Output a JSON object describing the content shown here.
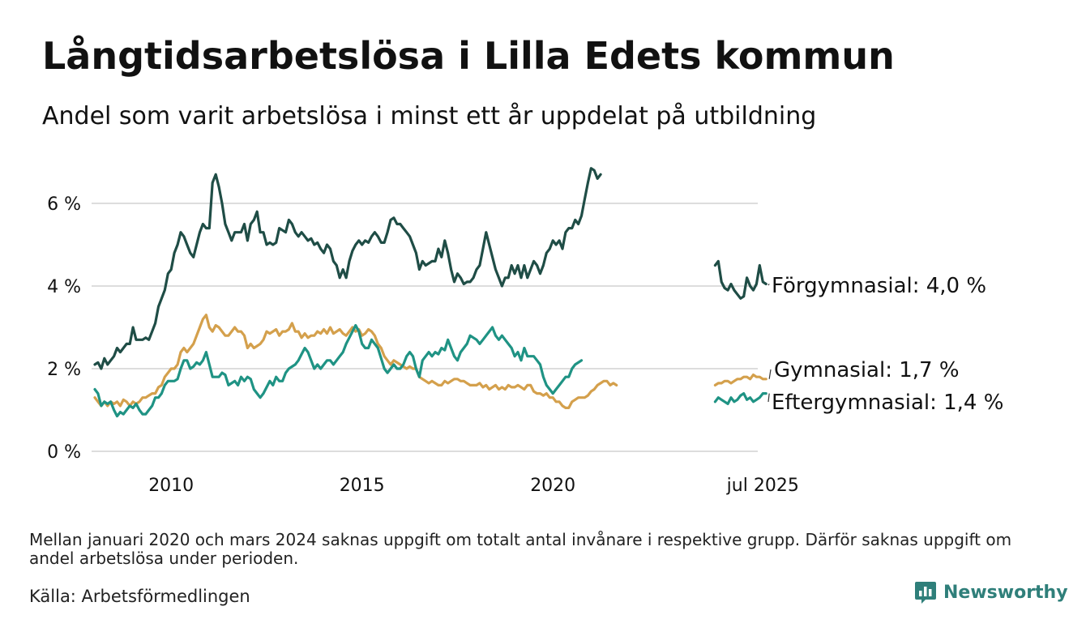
{
  "title": "Långtidsarbetslösa i Lilla Edets kommun",
  "subtitle": "Andel som varit arbetslösa i minst ett år uppdelat på utbildning",
  "footnote": "Mellan januari 2020 och mars 2024 saknas uppgift om totalt antal invånare i respektive grupp. Därför saknas uppgift om andel arbetslösa under perioden.",
  "source": "Källa: Arbetsförmedlingen",
  "brand": {
    "name": "Newsworthy",
    "icon": "newsworthy-logo-icon"
  },
  "colors": {
    "Förgymnasial": "#1f4d46",
    "Gymnasial": "#d4a04c",
    "Eftergymnasial": "#1f9384",
    "grid": "#dddddd",
    "brand": "#2f7f7a"
  },
  "chart_data": {
    "type": "line",
    "grid": true,
    "ylim": [
      0,
      7
    ],
    "y_ticks": [
      {
        "value": 0,
        "label": "0 %"
      },
      {
        "value": 2,
        "label": "2 %"
      },
      {
        "value": 4,
        "label": "4 %"
      },
      {
        "value": 6,
        "label": "6 %"
      }
    ],
    "x_ticks": [
      "2010",
      "2015",
      "2020",
      "jul 2025"
    ],
    "series": [
      {
        "name": "Förgymnasial",
        "end_label": "Förgymnasial: 4,0 %",
        "segments": [
          {
            "start": "2008-01",
            "values": [
              2.1,
              2.15,
              2.0,
              2.25,
              2.1,
              2.2,
              2.3,
              2.5,
              2.4,
              2.5,
              2.6,
              2.6,
              3.0,
              2.7,
              2.7,
              2.7,
              2.75,
              2.7,
              2.9,
              3.1,
              3.5,
              3.7,
              3.9,
              4.3,
              4.4,
              4.8,
              5.0,
              5.3,
              5.2,
              5.0,
              4.8,
              4.7,
              5.0,
              5.3,
              5.5,
              5.4,
              5.4,
              6.5,
              6.7,
              6.4,
              6.0,
              5.5,
              5.3,
              5.1,
              5.3,
              5.3,
              5.3,
              5.5,
              5.1,
              5.5,
              5.6,
              5.8,
              5.3,
              5.3,
              5.0,
              5.05,
              5.0,
              5.05,
              5.4,
              5.35,
              5.3,
              5.6,
              5.5,
              5.3,
              5.2,
              5.3,
              5.2,
              5.1,
              5.15,
              5.0,
              5.05,
              4.9,
              4.8,
              5.0,
              4.9,
              4.6,
              4.5,
              4.2,
              4.4,
              4.2,
              4.6,
              4.85,
              5.0,
              5.1,
              5.0,
              5.1,
              5.05,
              5.2,
              5.3,
              5.2,
              5.05,
              5.05,
              5.3,
              5.6,
              5.65,
              5.5,
              5.5,
              5.4,
              5.3,
              5.2,
              5.0,
              4.8,
              4.4,
              4.6,
              4.5,
              4.55,
              4.6,
              4.6,
              4.9,
              4.7,
              5.1,
              4.8,
              4.4,
              4.1,
              4.3,
              4.2,
              4.05,
              4.1,
              4.1,
              4.2,
              4.4,
              4.5,
              4.9,
              5.3,
              5.0,
              4.7,
              4.4,
              4.2,
              4.0,
              4.2,
              4.2,
              4.5,
              4.3,
              4.5,
              4.2,
              4.5,
              4.2,
              4.4,
              4.6,
              4.5,
              4.3,
              4.5,
              4.8,
              4.9,
              5.1,
              5.0,
              5.1,
              4.9,
              5.3,
              5.4,
              5.4,
              5.6,
              5.5,
              5.7,
              6.1,
              6.5,
              6.85,
              6.8,
              6.6,
              6.7
            ]
          },
          {
            "start": "2024-04",
            "values": [
              4.5,
              4.6,
              4.1,
              3.95,
              3.9,
              4.05,
              3.9,
              3.8,
              3.7,
              3.75,
              4.2,
              4.0,
              3.9,
              4.05,
              4.5,
              4.1,
              4.05
            ]
          }
        ]
      },
      {
        "name": "Gymnasial",
        "end_label": "Gymnasial: 1,7 %",
        "segments": [
          {
            "start": "2008-01",
            "values": [
              1.3,
              1.2,
              1.1,
              1.2,
              1.1,
              1.2,
              1.15,
              1.2,
              1.1,
              1.25,
              1.2,
              1.1,
              1.2,
              1.15,
              1.2,
              1.3,
              1.3,
              1.35,
              1.4,
              1.4,
              1.55,
              1.6,
              1.8,
              1.9,
              2.0,
              2.0,
              2.1,
              2.4,
              2.5,
              2.4,
              2.5,
              2.6,
              2.8,
              3.0,
              3.2,
              3.3,
              3.0,
              2.9,
              3.05,
              3.0,
              2.9,
              2.8,
              2.8,
              2.9,
              3.0,
              2.9,
              2.9,
              2.8,
              2.5,
              2.6,
              2.5,
              2.55,
              2.6,
              2.7,
              2.9,
              2.85,
              2.9,
              2.95,
              2.8,
              2.9,
              2.9,
              2.95,
              3.1,
              2.9,
              2.9,
              2.75,
              2.85,
              2.75,
              2.8,
              2.8,
              2.9,
              2.85,
              2.95,
              2.85,
              3.0,
              2.85,
              2.9,
              2.95,
              2.85,
              2.8,
              2.9,
              3.0,
              2.9,
              2.95,
              2.8,
              2.85,
              2.95,
              2.9,
              2.8,
              2.6,
              2.5,
              2.3,
              2.2,
              2.1,
              2.2,
              2.15,
              2.1,
              2.05,
              2.0,
              2.05,
              2.0,
              2.0,
              1.8,
              1.75,
              1.7,
              1.65,
              1.7,
              1.65,
              1.6,
              1.6,
              1.7,
              1.65,
              1.7,
              1.75,
              1.75,
              1.7,
              1.7,
              1.65,
              1.6,
              1.6,
              1.6,
              1.65,
              1.55,
              1.6,
              1.5,
              1.55,
              1.6,
              1.5,
              1.55,
              1.5,
              1.6,
              1.55,
              1.55,
              1.6,
              1.55,
              1.5,
              1.6,
              1.6,
              1.45,
              1.4,
              1.4,
              1.35,
              1.4,
              1.3,
              1.3,
              1.2,
              1.2,
              1.1,
              1.05,
              1.05,
              1.2,
              1.25,
              1.3,
              1.3,
              1.3,
              1.35,
              1.45,
              1.5,
              1.6,
              1.65,
              1.7,
              1.7,
              1.6,
              1.65,
              1.6
            ]
          },
          {
            "start": "2024-04",
            "values": [
              1.6,
              1.65,
              1.65,
              1.7,
              1.7,
              1.65,
              1.7,
              1.75,
              1.75,
              1.8,
              1.8,
              1.75,
              1.85,
              1.8,
              1.8,
              1.75,
              1.75
            ]
          }
        ]
      },
      {
        "name": "Eftergymnasial",
        "end_label": "Eftergymnasial: 1,4 %",
        "segments": [
          {
            "start": "2008-01",
            "values": [
              1.5,
              1.4,
              1.1,
              1.2,
              1.15,
              1.2,
              1.0,
              0.85,
              0.95,
              0.9,
              1.0,
              1.1,
              1.05,
              1.15,
              1.0,
              0.9,
              0.9,
              1.0,
              1.1,
              1.3,
              1.3,
              1.4,
              1.6,
              1.7,
              1.7,
              1.7,
              1.75,
              2.0,
              2.2,
              2.2,
              2.0,
              2.05,
              2.15,
              2.1,
              2.2,
              2.4,
              2.1,
              1.8,
              1.8,
              1.8,
              1.9,
              1.85,
              1.6,
              1.65,
              1.7,
              1.6,
              1.8,
              1.7,
              1.8,
              1.75,
              1.5,
              1.4,
              1.3,
              1.4,
              1.55,
              1.7,
              1.6,
              1.8,
              1.7,
              1.7,
              1.9,
              2.0,
              2.05,
              2.1,
              2.2,
              2.35,
              2.5,
              2.4,
              2.2,
              2.0,
              2.1,
              2.0,
              2.1,
              2.2,
              2.2,
              2.1,
              2.2,
              2.3,
              2.4,
              2.6,
              2.75,
              2.9,
              3.05,
              2.9,
              2.6,
              2.5,
              2.5,
              2.7,
              2.6,
              2.5,
              2.25,
              2.0,
              1.9,
              2.0,
              2.1,
              2.0,
              2.0,
              2.1,
              2.3,
              2.4,
              2.3,
              2.0,
              1.8,
              2.2,
              2.3,
              2.4,
              2.3,
              2.4,
              2.35,
              2.5,
              2.45,
              2.7,
              2.5,
              2.3,
              2.2,
              2.4,
              2.5,
              2.6,
              2.8,
              2.75,
              2.7,
              2.6,
              2.7,
              2.8,
              2.9,
              3.0,
              2.8,
              2.7,
              2.8,
              2.7,
              2.6,
              2.5,
              2.3,
              2.4,
              2.2,
              2.5,
              2.3,
              2.3,
              2.3,
              2.2,
              2.1,
              1.8,
              1.6,
              1.5,
              1.4,
              1.5,
              1.6,
              1.7,
              1.8,
              1.8,
              2.0,
              2.1,
              2.15,
              2.2
            ]
          },
          {
            "start": "2024-04",
            "values": [
              1.2,
              1.3,
              1.25,
              1.2,
              1.15,
              1.3,
              1.2,
              1.25,
              1.35,
              1.4,
              1.25,
              1.3,
              1.2,
              1.25,
              1.3,
              1.4,
              1.4
            ]
          }
        ]
      }
    ]
  }
}
